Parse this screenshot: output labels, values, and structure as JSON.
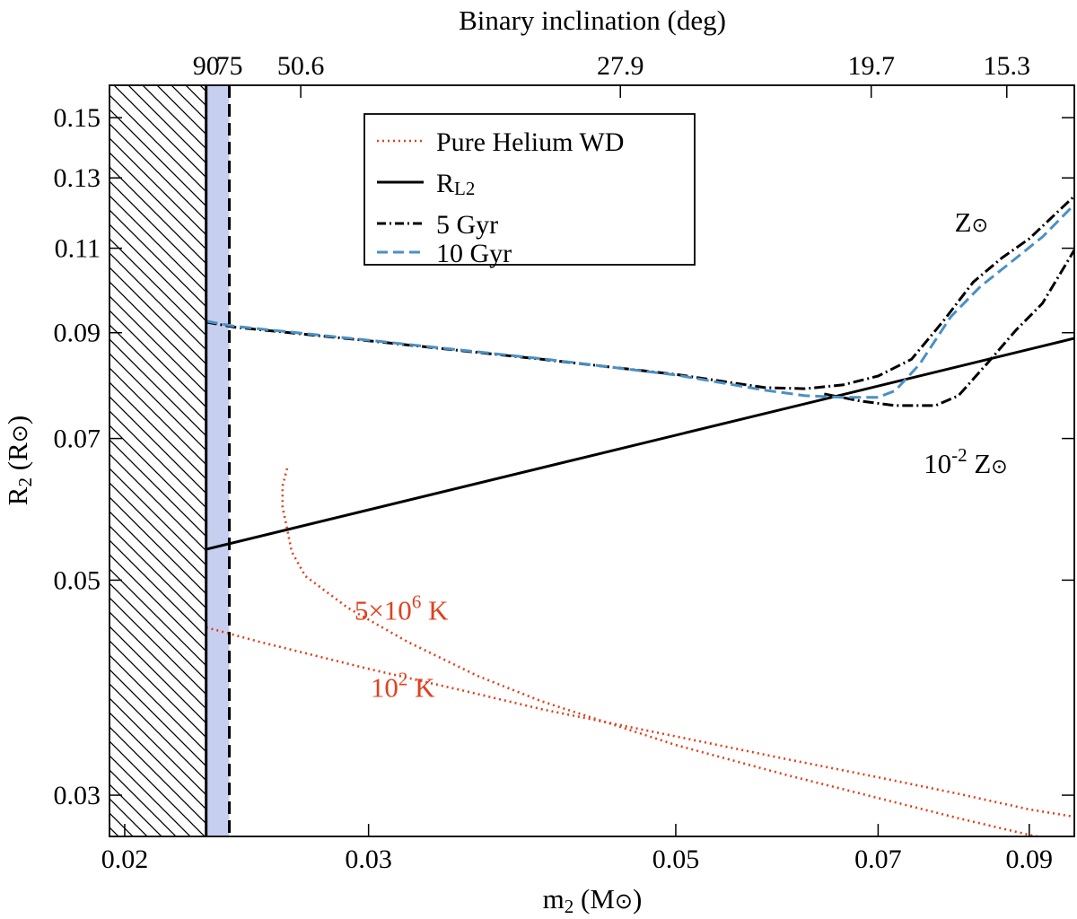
{
  "chart_data": {
    "type": "line",
    "title": "",
    "xlabel": {
      "main": "m",
      "sub": "2",
      "unit": " (M",
      "unit_sym": "⊙",
      "close": ")"
    },
    "ylabel": {
      "main": "R",
      "sub": "2",
      "unit": " (R",
      "unit_sym": "⊙",
      "close": ")"
    },
    "top_axis_label": "Binary inclination (deg)",
    "x_scale": "log",
    "y_scale": "log",
    "xlim": [
      0.0195,
      0.097
    ],
    "ylim": [
      0.0272,
      0.162
    ],
    "x_ticks": [
      0.02,
      0.03,
      0.05,
      0.07,
      0.09
    ],
    "x_tick_labels": [
      "0.02",
      "0.03",
      "0.05",
      "0.07",
      "0.09"
    ],
    "y_ticks": [
      0.03,
      0.05,
      0.07,
      0.09,
      0.11,
      0.13,
      0.15
    ],
    "y_tick_labels": [
      "0.03",
      "0.05",
      "0.07",
      "0.09",
      "0.11",
      "0.13",
      "0.15"
    ],
    "top_ticks": [
      {
        "m2": 0.0229,
        "label": "90"
      },
      {
        "m2": 0.0238,
        "label": "75"
      },
      {
        "m2": 0.0268,
        "label": "50.6"
      },
      {
        "m2": 0.0456,
        "label": "27.9"
      },
      {
        "m2": 0.0692,
        "label": "19.7"
      },
      {
        "m2": 0.0867,
        "label": "15.3"
      }
    ],
    "excluded_region": {
      "x_from": 0.0195,
      "x_to": 0.0229
    },
    "inclination_band": {
      "x_from": 0.0229,
      "x_to": 0.0238
    },
    "band_color": "#c7cff0",
    "legend_position": "top-center",
    "legend": [
      {
        "label": "Pure Helium WD",
        "style": "dotted",
        "color": "#e0401e"
      },
      {
        "label": "R",
        "sub": "L2",
        "style": "solid",
        "color": "#000000"
      },
      {
        "label": "5 Gyr",
        "style": "dashdot",
        "color": "#000000"
      },
      {
        "label": "10 Gyr",
        "style": "dashed",
        "color": "#4a90c4"
      }
    ],
    "annotations": [
      {
        "text": "Z",
        "sym": "⊙",
        "sup": "",
        "x": 0.0795,
        "y": 0.1145,
        "color": "#000000"
      },
      {
        "text": "10",
        "sup": "-2",
        "text2": " Z",
        "sym": "⊙",
        "x": 0.0755,
        "y": 0.0645,
        "color": "#000000"
      },
      {
        "text": "5×10",
        "sup": "6",
        "text2": " K",
        "sym": "",
        "x": 0.0293,
        "y": 0.0455,
        "color": "#e0401e"
      },
      {
        "text": "10",
        "sup": "2",
        "text2": " K",
        "sym": "",
        "x": 0.0301,
        "y": 0.0379,
        "color": "#e0401e"
      }
    ],
    "series": [
      {
        "id": "rl2",
        "style": "solid",
        "color": "#000000",
        "points": [
          [
            0.0229,
            0.0538
          ],
          [
            0.097,
            0.0888
          ]
        ]
      },
      {
        "id": "gyr5-solar",
        "style": "dashdot",
        "color": "#000000",
        "points": [
          [
            0.0229,
            0.0923
          ],
          [
            0.024,
            0.0912
          ],
          [
            0.03,
            0.0883
          ],
          [
            0.04,
            0.0845
          ],
          [
            0.05,
            0.0815
          ],
          [
            0.058,
            0.079
          ],
          [
            0.062,
            0.0788
          ],
          [
            0.066,
            0.0795
          ],
          [
            0.07,
            0.0812
          ],
          [
            0.074,
            0.0845
          ],
          [
            0.078,
            0.0925
          ],
          [
            0.082,
            0.1015
          ],
          [
            0.086,
            0.1075
          ],
          [
            0.09,
            0.1125
          ],
          [
            0.097,
            0.1245
          ]
        ]
      },
      {
        "id": "gyr5-lowZ",
        "style": "dashdot",
        "color": "#000000",
        "points": [
          [
            0.064,
            0.0778
          ],
          [
            0.068,
            0.0765
          ],
          [
            0.072,
            0.0757
          ],
          [
            0.077,
            0.0757
          ],
          [
            0.08,
            0.0775
          ],
          [
            0.084,
            0.0838
          ],
          [
            0.088,
            0.0905
          ],
          [
            0.092,
            0.0965
          ],
          [
            0.097,
            0.1095
          ]
        ]
      },
      {
        "id": "gyr10",
        "style": "dashed",
        "color": "#4a90c4",
        "points": [
          [
            0.0229,
            0.0925
          ],
          [
            0.024,
            0.0914
          ],
          [
            0.03,
            0.0884
          ],
          [
            0.04,
            0.0846
          ],
          [
            0.05,
            0.0814
          ],
          [
            0.058,
            0.0785
          ],
          [
            0.062,
            0.0775
          ],
          [
            0.066,
            0.0772
          ],
          [
            0.07,
            0.0772
          ],
          [
            0.072,
            0.0784
          ],
          [
            0.075,
            0.0835
          ],
          [
            0.079,
            0.0935
          ],
          [
            0.083,
            0.1005
          ],
          [
            0.087,
            0.106
          ],
          [
            0.092,
            0.113
          ],
          [
            0.097,
            0.122
          ]
        ]
      },
      {
        "id": "he-hot",
        "style": "dotted",
        "color": "#e0401e",
        "points": [
          [
            0.0262,
            0.0652
          ],
          [
            0.026,
            0.0625
          ],
          [
            0.026,
            0.0595
          ],
          [
            0.0262,
            0.0565
          ],
          [
            0.0264,
            0.0535
          ],
          [
            0.027,
            0.0505
          ],
          [
            0.029,
            0.0468
          ],
          [
            0.032,
            0.0432
          ],
          [
            0.036,
            0.0398
          ],
          [
            0.04,
            0.0375
          ],
          [
            0.045,
            0.0355
          ],
          [
            0.05,
            0.0338
          ],
          [
            0.06,
            0.0315
          ],
          [
            0.07,
            0.0298
          ],
          [
            0.08,
            0.0284
          ],
          [
            0.09,
            0.0273
          ],
          [
            0.097,
            0.0267
          ]
        ]
      },
      {
        "id": "he-cold",
        "style": "dotted",
        "color": "#e0401e",
        "points": [
          [
            0.0229,
            0.0447
          ],
          [
            0.025,
            0.0432
          ],
          [
            0.03,
            0.0405
          ],
          [
            0.035,
            0.0385
          ],
          [
            0.04,
            0.0368
          ],
          [
            0.05,
            0.0345
          ],
          [
            0.06,
            0.0327
          ],
          [
            0.07,
            0.0313
          ],
          [
            0.08,
            0.0301
          ],
          [
            0.09,
            0.029
          ],
          [
            0.097,
            0.0285
          ]
        ]
      }
    ]
  }
}
